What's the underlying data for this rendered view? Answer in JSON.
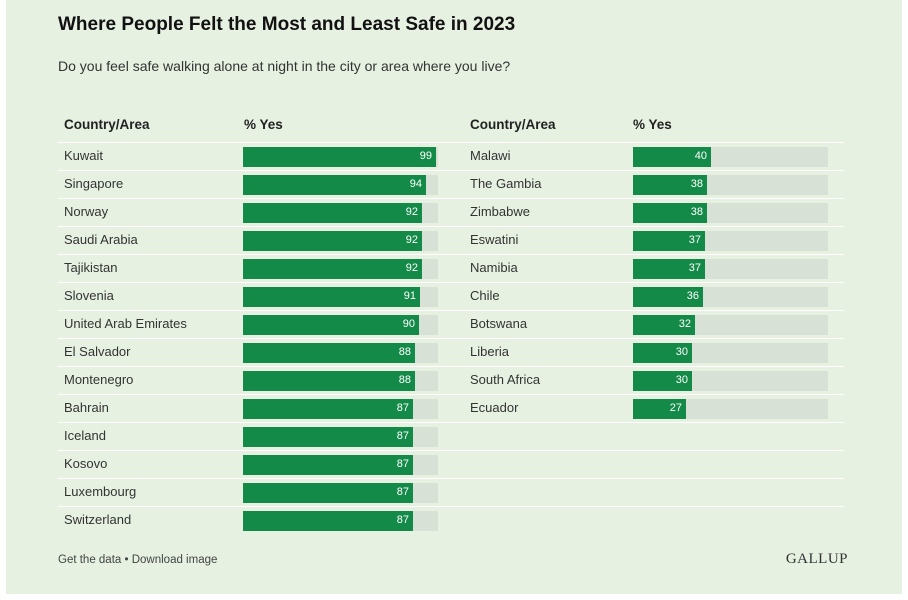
{
  "header": {
    "title": "Where People Felt the Most and Least Safe in 2023",
    "subtitle": "Do you feel safe walking alone at night in the city or area where you live?"
  },
  "columns": {
    "country_label": "Country/Area",
    "yes_label": "% Yes"
  },
  "footer": {
    "get_data": "Get the data",
    "separator": " • ",
    "download": "Download image",
    "logo": "GALLUP"
  },
  "colors": {
    "bar": "#138a47",
    "track": "#d8e1d5",
    "background": "#e6f1e1"
  },
  "chart_data": [
    {
      "type": "bar",
      "orientation": "horizontal",
      "xlim": [
        0,
        100
      ],
      "categories": [
        "Kuwait",
        "Singapore",
        "Norway",
        "Saudi Arabia",
        "Tajikistan",
        "Slovenia",
        "United Arab Emirates",
        "El Salvador",
        "Montenegro",
        "Bahrain",
        "Iceland",
        "Kosovo",
        "Luxembourg",
        "Switzerland"
      ],
      "values": [
        99,
        94,
        92,
        92,
        92,
        91,
        90,
        88,
        88,
        87,
        87,
        87,
        87,
        87
      ]
    },
    {
      "type": "bar",
      "orientation": "horizontal",
      "xlim": [
        0,
        100
      ],
      "categories": [
        "Malawi",
        "The Gambia",
        "Zimbabwe",
        "Eswatini",
        "Namibia",
        "Chile",
        "Botswana",
        "Liberia",
        "South Africa",
        "Ecuador"
      ],
      "values": [
        40,
        38,
        38,
        37,
        37,
        36,
        32,
        30,
        30,
        27
      ]
    }
  ]
}
